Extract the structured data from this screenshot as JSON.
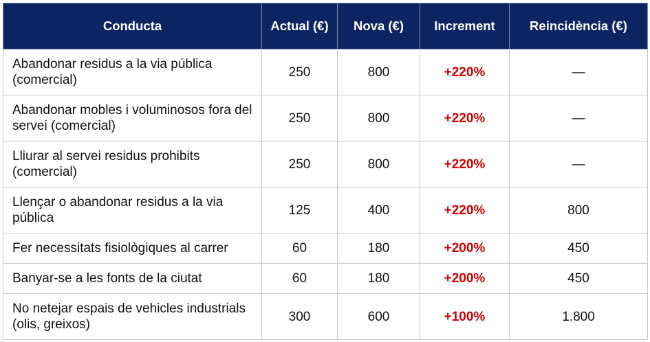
{
  "table": {
    "headers": [
      "Conducta",
      "Actual (€)",
      "Nova (€)",
      "Increment",
      "Reincidència (€)"
    ],
    "rows": [
      [
        "Abandonar residus a la via pública (comercial)",
        "250",
        "800",
        "+220%",
        "—"
      ],
      [
        "Abandonar mobles i voluminosos fora del servei (comercial)",
        "250",
        "800",
        "+220%",
        "—"
      ],
      [
        "Lliurar al servei residus prohibits (comercial)",
        "250",
        "800",
        "+220%",
        "—"
      ],
      [
        "Llençar o abandonar residus a la via pública",
        "125",
        "400",
        "+220%",
        "800"
      ],
      [
        "Fer necessitats fisiològiques al carrer",
        "60",
        "180",
        "+200%",
        "450"
      ],
      [
        "Banyar-se a les fonts de la ciutat",
        "60",
        "180",
        "+200%",
        "450"
      ],
      [
        "No netejar espais de vehicles industrials (olis, greixos)",
        "300",
        "600",
        "+100%",
        "1.800"
      ]
    ]
  }
}
